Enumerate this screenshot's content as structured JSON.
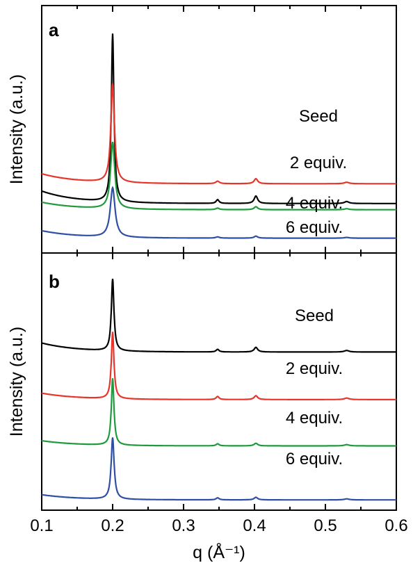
{
  "chart_data": [
    {
      "type": "line",
      "panel_label": "a",
      "ylabel": "Intensity (a.u.)",
      "xlim": [
        0.1,
        0.6
      ],
      "y_ticks_shown": false,
      "grid": false,
      "series": [
        {
          "name": "Seed",
          "color": "#000000",
          "baseline": 0.2,
          "low_q_offset": 0.05,
          "peaks": [
            {
              "q": 0.2,
              "h": 0.68,
              "w": 0.0022
            },
            {
              "q": 0.348,
              "h": 0.015,
              "w": 0.0025
            },
            {
              "q": 0.402,
              "h": 0.03,
              "w": 0.003
            },
            {
              "q": 0.53,
              "h": 0.008,
              "w": 0.004
            }
          ]
        },
        {
          "name": "2 equiv.",
          "color": "#e8352b",
          "baseline": 0.28,
          "low_q_offset": 0.04,
          "peaks": [
            {
              "q": 0.2,
              "h": 0.4,
              "w": 0.003
            },
            {
              "q": 0.348,
              "h": 0.01,
              "w": 0.003
            },
            {
              "q": 0.402,
              "h": 0.02,
              "w": 0.003
            },
            {
              "q": 0.53,
              "h": 0.006,
              "w": 0.004
            }
          ]
        },
        {
          "name": "4 equiv.",
          "color": "#1f9a3c",
          "baseline": 0.175,
          "low_q_offset": 0.03,
          "peaks": [
            {
              "q": 0.2,
              "h": 0.27,
              "w": 0.0035
            },
            {
              "q": 0.348,
              "h": 0.006,
              "w": 0.003
            },
            {
              "q": 0.402,
              "h": 0.012,
              "w": 0.003
            },
            {
              "q": 0.53,
              "h": 0.004,
              "w": 0.004
            }
          ]
        },
        {
          "name": "6 equiv.",
          "color": "#2f4fa5",
          "baseline": 0.06,
          "low_q_offset": 0.03,
          "peaks": [
            {
              "q": 0.2,
              "h": 0.2,
              "w": 0.004
            },
            {
              "q": 0.348,
              "h": 0.005,
              "w": 0.003
            },
            {
              "q": 0.402,
              "h": 0.008,
              "w": 0.003
            },
            {
              "q": 0.53,
              "h": 0.003,
              "w": 0.004
            }
          ]
        }
      ]
    },
    {
      "type": "line",
      "panel_label": "b",
      "xlabel": "q (Å⁻¹)",
      "ylabel": "Intensity (a.u.)",
      "xlim": [
        0.1,
        0.6
      ],
      "x_ticks": [
        "0.1",
        "0.2",
        "0.3",
        "0.4",
        "0.5",
        "0.6"
      ],
      "y_ticks_shown": false,
      "grid": false,
      "series": [
        {
          "name": "Seed",
          "color": "#000000",
          "baseline": 0.615,
          "low_q_offset": 0.035,
          "peaks": [
            {
              "q": 0.2,
              "h": 0.28,
              "w": 0.0022
            },
            {
              "q": 0.348,
              "h": 0.01,
              "w": 0.0025
            },
            {
              "q": 0.402,
              "h": 0.018,
              "w": 0.003
            },
            {
              "q": 0.53,
              "h": 0.006,
              "w": 0.004
            }
          ]
        },
        {
          "name": "2 equiv.",
          "color": "#e8352b",
          "baseline": 0.43,
          "low_q_offset": 0.025,
          "peaks": [
            {
              "q": 0.2,
              "h": 0.26,
              "w": 0.0022
            },
            {
              "q": 0.348,
              "h": 0.012,
              "w": 0.0025
            },
            {
              "q": 0.402,
              "h": 0.015,
              "w": 0.003
            },
            {
              "q": 0.53,
              "h": 0.006,
              "w": 0.004
            }
          ]
        },
        {
          "name": "4 equiv.",
          "color": "#1f9a3c",
          "baseline": 0.25,
          "low_q_offset": 0.02,
          "peaks": [
            {
              "q": 0.2,
              "h": 0.26,
              "w": 0.0022
            },
            {
              "q": 0.348,
              "h": 0.008,
              "w": 0.0025
            },
            {
              "q": 0.402,
              "h": 0.01,
              "w": 0.003
            },
            {
              "q": 0.53,
              "h": 0.005,
              "w": 0.004
            }
          ]
        },
        {
          "name": "6 equiv.",
          "color": "#2f4fa5",
          "baseline": 0.04,
          "low_q_offset": 0.02,
          "peaks": [
            {
              "q": 0.2,
              "h": 0.24,
              "w": 0.0025
            },
            {
              "q": 0.348,
              "h": 0.008,
              "w": 0.0025
            },
            {
              "q": 0.402,
              "h": 0.01,
              "w": 0.003
            },
            {
              "q": 0.53,
              "h": 0.004,
              "w": 0.004
            }
          ]
        }
      ]
    }
  ]
}
